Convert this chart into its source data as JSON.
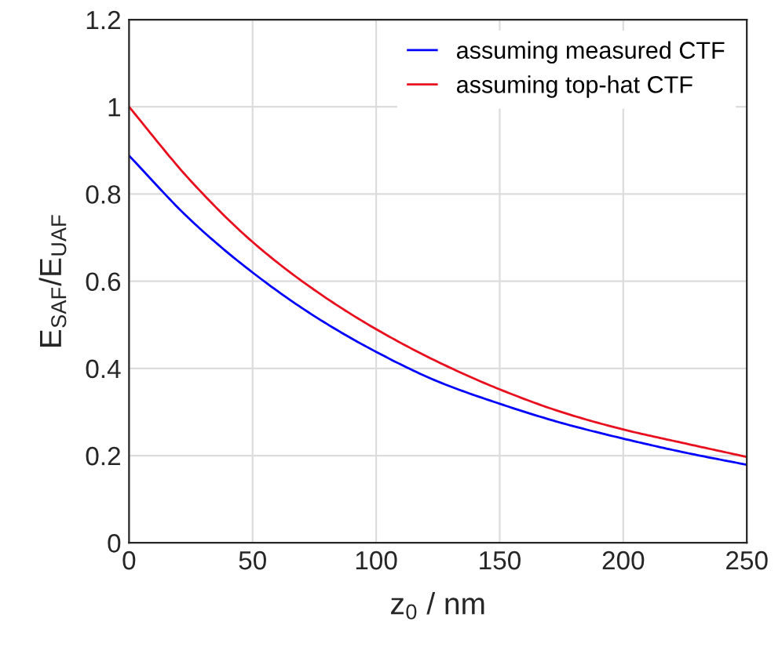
{
  "chart_data": {
    "type": "line",
    "xlabel": "z$_{0}$ / nm",
    "ylabel": "E$_{SAF}$/E$_{UAF}$",
    "x": [
      0,
      25,
      50,
      75,
      100,
      125,
      150,
      175,
      200,
      225,
      250
    ],
    "series": [
      {
        "name": "assuming measured CTF",
        "color": "#0000ff",
        "values": [
          0.888,
          0.74,
          0.62,
          0.52,
          0.438,
          0.37,
          0.319,
          0.275,
          0.239,
          0.207,
          0.179
        ]
      },
      {
        "name": "assuming top-hat CTF",
        "color": "#e8101e",
        "values": [
          1.0,
          0.83,
          0.69,
          0.58,
          0.49,
          0.415,
          0.352,
          0.3,
          0.26,
          0.228,
          0.197
        ]
      }
    ],
    "xlim": [
      0,
      250
    ],
    "ylim": [
      0,
      1.2
    ],
    "xticks": [
      0,
      50,
      100,
      150,
      200,
      250
    ],
    "yticks": [
      0,
      0.2,
      0.4,
      0.6,
      0.8,
      1,
      1.2
    ],
    "grid": true,
    "legend": "top right",
    "marker": "none",
    "line_style": "solid"
  }
}
